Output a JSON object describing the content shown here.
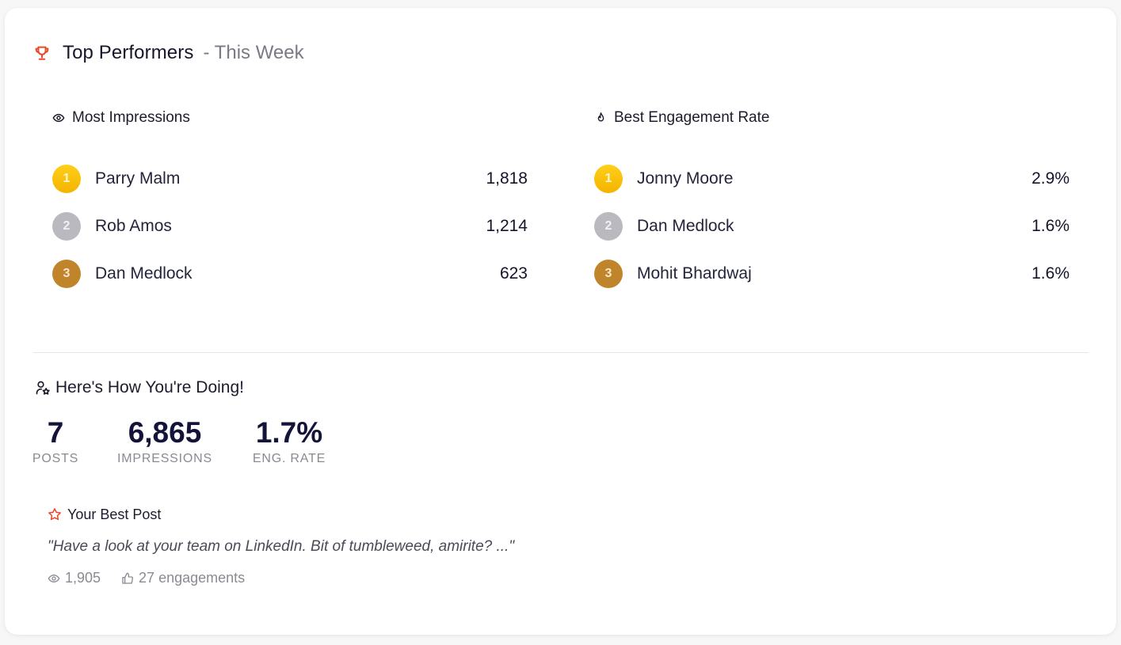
{
  "header": {
    "title": "Top Performers",
    "subtitle": "- This Week",
    "icon": "trophy-icon",
    "accent_color": "#e8492a"
  },
  "impressions": {
    "title": "Most Impressions",
    "icon": "eye-icon",
    "rows": [
      {
        "rank": "1",
        "name": "Parry Malm",
        "value": "1,818"
      },
      {
        "rank": "2",
        "name": "Rob Amos",
        "value": "1,214"
      },
      {
        "rank": "3",
        "name": "Dan Medlock",
        "value": "623"
      }
    ]
  },
  "engagement": {
    "title": "Best Engagement Rate",
    "icon": "flame-icon",
    "rows": [
      {
        "rank": "1",
        "name": "Jonny Moore",
        "value": "2.9%"
      },
      {
        "rank": "2",
        "name": "Dan Medlock",
        "value": "1.6%"
      },
      {
        "rank": "3",
        "name": "Mohit Bhardwaj",
        "value": "1.6%"
      }
    ]
  },
  "rank_colors": {
    "gold": "#f4b400",
    "silver": "#b9b9bf",
    "bronze": "#c0842b"
  },
  "doing": {
    "title": "Here's How You're Doing!",
    "icon": "user-star-icon",
    "stats": [
      {
        "value": "7",
        "label": "POSTS"
      },
      {
        "value": "6,865",
        "label": "IMPRESSIONS"
      },
      {
        "value": "1.7%",
        "label": "ENG. RATE"
      }
    ]
  },
  "best_post": {
    "title": "Your Best Post",
    "icon": "star-icon",
    "quote": "\"Have a look at your team on LinkedIn. Bit of tumbleweed, amirite? ...\"",
    "views": "1,905",
    "engagements": "27 engagements"
  }
}
